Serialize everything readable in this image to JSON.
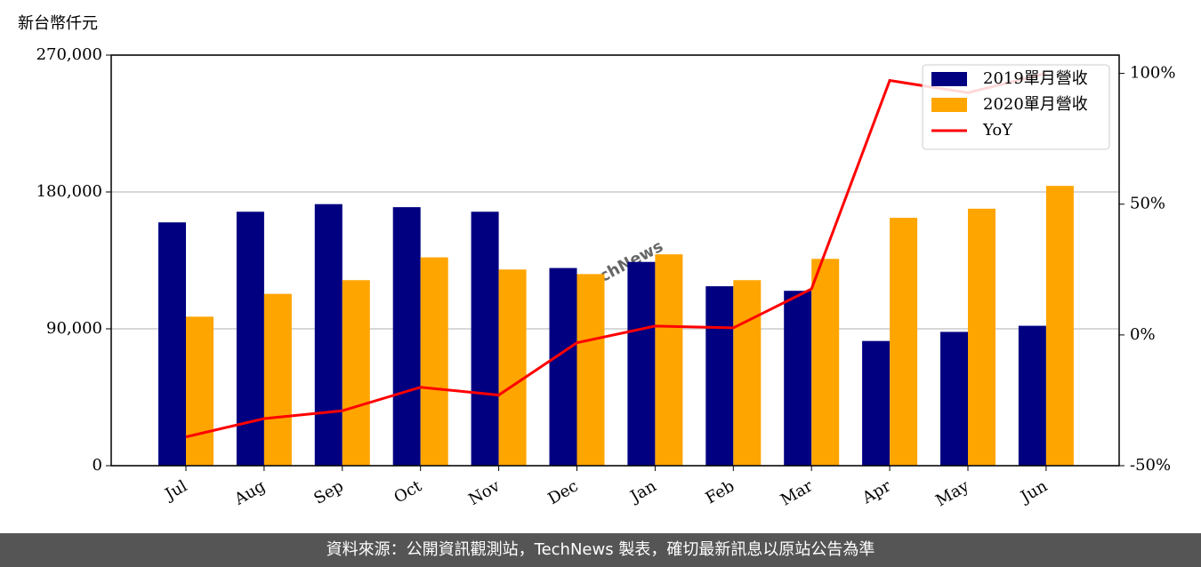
{
  "chart_data": {
    "type": "bar",
    "y_unit_label": "新台幣仟元",
    "watermark": "TechNews",
    "footer": "資料來源：公開資訊觀測站，TechNews 製表，確切最新訊息以原站公告為準",
    "categories": [
      "Jul",
      "Aug",
      "Sep",
      "Oct",
      "Nov",
      "Dec",
      "Jan",
      "Feb",
      "Mar",
      "Apr",
      "May",
      "Jun"
    ],
    "series": [
      {
        "name": "2019單月營收",
        "type": "bar",
        "color": "#000080",
        "values": [
          160000,
          167000,
          172000,
          170000,
          167000,
          130000,
          134000,
          118000,
          115000,
          82000,
          88000,
          92000
        ]
      },
      {
        "name": "2020單月營收",
        "type": "bar",
        "color": "#ffa500",
        "values": [
          98000,
          113000,
          122000,
          137000,
          129000,
          126000,
          139000,
          122000,
          136000,
          163000,
          169000,
          184000
        ]
      },
      {
        "name": "YoY",
        "type": "line",
        "axis": "y2",
        "color": "#ff0000",
        "values": [
          -39,
          -32,
          -29,
          -20,
          -23,
          -3,
          3.4,
          2.7,
          17.6,
          97.3,
          92.6,
          100
        ]
      }
    ],
    "ylim": [
      0,
      270000
    ],
    "yticks": [
      0,
      {
        "value": 90000,
        "label": "90,000"
      },
      {
        "value": 180000,
        "label": "180,000"
      },
      {
        "value": 270000,
        "label": "270,000"
      }
    ],
    "y2lim": [
      -50,
      107
    ],
    "y2ticks": [
      {
        "value": -50,
        "label": "-50%"
      },
      {
        "value": 0,
        "label": "0%"
      },
      {
        "value": 50,
        "label": "50%"
      },
      {
        "value": 100,
        "label": "100%"
      }
    ],
    "grid": true,
    "legend": "upper right"
  }
}
